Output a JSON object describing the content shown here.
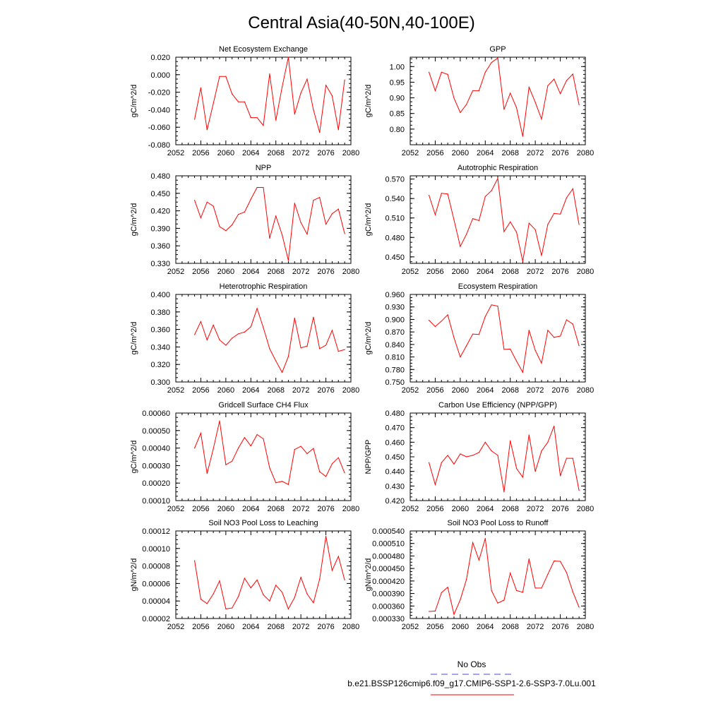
{
  "title": "Central Asia(40-50N,40-100E)",
  "colors": {
    "series": "#ff0000",
    "obs": "#4a4ad6",
    "axis": "#000000"
  },
  "legend": {
    "obs_label": "No Obs",
    "model_label": "b.e21.BSSP126cmip6.f09_g17.CMIP6-SSP1-2.6-SSP3-7.0Lu.001"
  },
  "chart_data": [
    {
      "type": "line",
      "title": "Net Ecosystem Exchange",
      "ylabel": "gC/m^2/d",
      "xlim": [
        2052,
        2080
      ],
      "xticks": [
        "2052",
        "2056",
        "2060",
        "2064",
        "2068",
        "2072",
        "2076",
        "2080"
      ],
      "ylim": [
        -0.08,
        0.02
      ],
      "yticks": [
        "-0.080",
        "-0.060",
        "-0.040",
        "-0.020",
        "0.000",
        "0.020"
      ],
      "x": [
        2055,
        2056,
        2057,
        2058,
        2059,
        2060,
        2061,
        2062,
        2063,
        2064,
        2065,
        2066,
        2067,
        2068,
        2069,
        2070,
        2071,
        2072,
        2073,
        2074,
        2075,
        2076,
        2077,
        2078,
        2079
      ],
      "values": [
        -0.051,
        -0.015,
        -0.063,
        -0.033,
        -0.002,
        -0.002,
        -0.022,
        -0.031,
        -0.031,
        -0.049,
        -0.049,
        -0.058,
        0.001,
        -0.052,
        -0.014,
        0.02,
        -0.045,
        -0.021,
        -0.005,
        -0.04,
        -0.066,
        -0.012,
        -0.024,
        -0.063,
        -0.006
      ]
    },
    {
      "type": "line",
      "title": "GPP",
      "ylabel": "gC/m^2/d",
      "xlim": [
        2052,
        2080
      ],
      "xticks": [
        "2052",
        "2056",
        "2060",
        "2064",
        "2068",
        "2072",
        "2076",
        "2080"
      ],
      "ylim": [
        0.75,
        1.03
      ],
      "yticks": [
        "0.80",
        "0.85",
        "0.90",
        "0.95",
        "1.00"
      ],
      "x": [
        2055,
        2056,
        2057,
        2058,
        2059,
        2060,
        2061,
        2062,
        2063,
        2064,
        2065,
        2066,
        2067,
        2068,
        2069,
        2070,
        2071,
        2072,
        2073,
        2074,
        2075,
        2076,
        2077,
        2078,
        2079
      ],
      "values": [
        0.982,
        0.923,
        0.982,
        0.975,
        0.899,
        0.853,
        0.879,
        0.923,
        0.923,
        0.982,
        1.013,
        1.027,
        0.863,
        0.915,
        0.868,
        0.777,
        0.934,
        0.886,
        0.832,
        0.939,
        0.96,
        0.913,
        0.955,
        0.976,
        0.878
      ]
    },
    {
      "type": "line",
      "title": "NPP",
      "ylabel": "gC/m^2/d",
      "xlim": [
        2052,
        2080
      ],
      "xticks": [
        "2052",
        "2056",
        "2060",
        "2064",
        "2068",
        "2072",
        "2076",
        "2080"
      ],
      "ylim": [
        0.33,
        0.48
      ],
      "yticks": [
        "0.330",
        "0.360",
        "0.390",
        "0.420",
        "0.450",
        "0.480"
      ],
      "x": [
        2055,
        2056,
        2057,
        2058,
        2059,
        2060,
        2061,
        2062,
        2063,
        2064,
        2065,
        2066,
        2067,
        2068,
        2069,
        2070,
        2071,
        2072,
        2073,
        2074,
        2075,
        2076,
        2077,
        2078,
        2079
      ],
      "values": [
        0.438,
        0.408,
        0.435,
        0.428,
        0.393,
        0.386,
        0.396,
        0.414,
        0.418,
        0.44,
        0.46,
        0.46,
        0.373,
        0.411,
        0.379,
        0.335,
        0.433,
        0.4,
        0.38,
        0.438,
        0.443,
        0.397,
        0.415,
        0.423,
        0.381
      ]
    },
    {
      "type": "line",
      "title": "Autotrophic Respiration",
      "ylabel": "gC/m^2/d",
      "xlim": [
        2052,
        2080
      ],
      "xticks": [
        "2052",
        "2056",
        "2060",
        "2064",
        "2068",
        "2072",
        "2076",
        "2080"
      ],
      "ylim": [
        0.44,
        0.575
      ],
      "yticks": [
        "0.450",
        "0.480",
        "0.510",
        "0.540",
        "0.570"
      ],
      "x": [
        2055,
        2056,
        2057,
        2058,
        2059,
        2060,
        2061,
        2062,
        2063,
        2064,
        2065,
        2066,
        2067,
        2068,
        2069,
        2070,
        2071,
        2072,
        2073,
        2074,
        2075,
        2076,
        2077,
        2078,
        2079
      ],
      "values": [
        0.545,
        0.515,
        0.548,
        0.547,
        0.507,
        0.466,
        0.485,
        0.509,
        0.506,
        0.543,
        0.552,
        0.571,
        0.489,
        0.504,
        0.488,
        0.443,
        0.502,
        0.492,
        0.452,
        0.5,
        0.517,
        0.516,
        0.541,
        0.555,
        0.5
      ]
    },
    {
      "type": "line",
      "title": "Heterotrophic Respiration",
      "ylabel": "gC/m^2/d",
      "xlim": [
        2052,
        2080
      ],
      "xticks": [
        "2052",
        "2056",
        "2060",
        "2064",
        "2068",
        "2072",
        "2076",
        "2080"
      ],
      "ylim": [
        0.3,
        0.4
      ],
      "yticks": [
        "0.300",
        "0.320",
        "0.340",
        "0.360",
        "0.380",
        "0.400"
      ],
      "x": [
        2055,
        2056,
        2057,
        2058,
        2059,
        2060,
        2061,
        2062,
        2063,
        2064,
        2065,
        2066,
        2067,
        2068,
        2069,
        2070,
        2071,
        2072,
        2073,
        2074,
        2075,
        2076,
        2077,
        2078,
        2079
      ],
      "values": [
        0.354,
        0.369,
        0.348,
        0.365,
        0.348,
        0.342,
        0.35,
        0.355,
        0.357,
        0.363,
        0.384,
        0.362,
        0.338,
        0.324,
        0.311,
        0.329,
        0.373,
        0.339,
        0.341,
        0.374,
        0.338,
        0.342,
        0.359,
        0.335,
        0.337
      ]
    },
    {
      "type": "line",
      "title": "Ecosystem Respiration",
      "ylabel": "gC/m^2/d",
      "xlim": [
        2052,
        2080
      ],
      "xticks": [
        "2052",
        "2056",
        "2060",
        "2064",
        "2068",
        "2072",
        "2076",
        "2080"
      ],
      "ylim": [
        0.75,
        0.96
      ],
      "yticks": [
        "0.750",
        "0.780",
        "0.810",
        "0.840",
        "0.870",
        "0.900",
        "0.930",
        "0.960"
      ],
      "x": [
        2055,
        2056,
        2057,
        2058,
        2059,
        2060,
        2061,
        2062,
        2063,
        2064,
        2065,
        2066,
        2067,
        2068,
        2069,
        2070,
        2071,
        2072,
        2073,
        2074,
        2075,
        2076,
        2077,
        2078,
        2079
      ],
      "values": [
        0.898,
        0.883,
        0.896,
        0.911,
        0.856,
        0.81,
        0.837,
        0.865,
        0.864,
        0.907,
        0.935,
        0.932,
        0.828,
        0.829,
        0.8,
        0.773,
        0.874,
        0.826,
        0.795,
        0.874,
        0.857,
        0.86,
        0.899,
        0.889,
        0.837
      ]
    },
    {
      "type": "line",
      "title": "Gridcell Surface CH4 Flux",
      "ylabel": "gC/m^2/d",
      "xlim": [
        2052,
        2080
      ],
      "xticks": [
        "2052",
        "2056",
        "2060",
        "2064",
        "2068",
        "2072",
        "2076",
        "2080"
      ],
      "ylim": [
        0.0001,
        0.0006
      ],
      "yticks": [
        "0.00010",
        "0.00020",
        "0.00030",
        "0.00040",
        "0.00050",
        "0.00060"
      ],
      "x": [
        2055,
        2056,
        2057,
        2058,
        2059,
        2060,
        2061,
        2062,
        2063,
        2064,
        2065,
        2066,
        2067,
        2068,
        2069,
        2070,
        2071,
        2072,
        2073,
        2074,
        2075,
        2076,
        2077,
        2078,
        2079
      ],
      "values": [
        0.0004,
        0.000485,
        0.000255,
        0.000395,
        0.000555,
        0.000305,
        0.000325,
        0.0004,
        0.00046,
        0.000412,
        0.000477,
        0.000453,
        0.000287,
        0.000202,
        0.00021,
        0.000192,
        0.000392,
        0.00041,
        0.000368,
        0.000398,
        0.000265,
        0.000238,
        0.00031,
        0.000345,
        0.000258
      ]
    },
    {
      "type": "line",
      "title": "Carbon Use Efficiency (NPP/GPP)",
      "ylabel": "NPP/GPP",
      "xlim": [
        2052,
        2080
      ],
      "xticks": [
        "2052",
        "2056",
        "2060",
        "2064",
        "2068",
        "2072",
        "2076",
        "2080"
      ],
      "ylim": [
        0.42,
        0.48
      ],
      "yticks": [
        "0.420",
        "0.430",
        "0.440",
        "0.450",
        "0.460",
        "0.470",
        "0.480"
      ],
      "x": [
        2055,
        2056,
        2057,
        2058,
        2059,
        2060,
        2061,
        2062,
        2063,
        2064,
        2065,
        2066,
        2067,
        2068,
        2069,
        2070,
        2071,
        2072,
        2073,
        2074,
        2075,
        2076,
        2077,
        2078,
        2079
      ],
      "values": [
        0.446,
        0.431,
        0.446,
        0.451,
        0.445,
        0.452,
        0.45,
        0.451,
        0.453,
        0.46,
        0.454,
        0.451,
        0.426,
        0.461,
        0.442,
        0.436,
        0.465,
        0.44,
        0.454,
        0.46,
        0.471,
        0.437,
        0.449,
        0.449,
        0.427
      ]
    },
    {
      "type": "line",
      "title": "Soil NO3 Pool Loss to Leaching",
      "ylabel": "gN/m^2/d",
      "xlim": [
        2052,
        2080
      ],
      "xticks": [
        "2052",
        "2056",
        "2060",
        "2064",
        "2068",
        "2072",
        "2076",
        "2080"
      ],
      "ylim": [
        2e-05,
        0.00012
      ],
      "yticks": [
        "0.00002",
        "0.00004",
        "0.00006",
        "0.00008",
        "0.00010",
        "0.00012"
      ],
      "x": [
        2055,
        2056,
        2057,
        2058,
        2059,
        2060,
        2061,
        2062,
        2063,
        2064,
        2065,
        2066,
        2067,
        2068,
        2069,
        2070,
        2071,
        2072,
        2073,
        2074,
        2075,
        2076,
        2077,
        2078,
        2079
      ],
      "values": [
        8.6e-05,
        4.2e-05,
        3.7e-05,
        4.8e-05,
        6.3e-05,
        3.1e-05,
        3.2e-05,
        4.5e-05,
        6.6e-05,
        5.5e-05,
        6.4e-05,
        4.7e-05,
        4e-05,
        5.8e-05,
        5e-05,
        3.1e-05,
        4.4e-05,
        6.7e-05,
        4.8e-05,
        3.8e-05,
        6.5e-05,
        0.000114,
        7.5e-05,
        9.1e-05,
        6.4e-05
      ]
    },
    {
      "type": "line",
      "title": "Soil NO3 Pool Loss to Runoff",
      "ylabel": "gN/m^2/d",
      "xlim": [
        2052,
        2080
      ],
      "xticks": [
        "2052",
        "2056",
        "2060",
        "2064",
        "2068",
        "2072",
        "2076",
        "2080"
      ],
      "ylim": [
        0.00033,
        0.00054
      ],
      "yticks": [
        "0.000330",
        "0.000360",
        "0.000390",
        "0.000420",
        "0.000450",
        "0.000480",
        "0.000510",
        "0.000540"
      ],
      "x": [
        2055,
        2056,
        2057,
        2058,
        2059,
        2060,
        2061,
        2062,
        2063,
        2064,
        2065,
        2066,
        2067,
        2068,
        2069,
        2070,
        2071,
        2072,
        2073,
        2074,
        2075,
        2076,
        2077,
        2078,
        2079
      ],
      "values": [
        0.000347,
        0.000348,
        0.000392,
        0.000405,
        0.00034,
        0.000375,
        0.000424,
        0.000512,
        0.00047,
        0.000522,
        0.000397,
        0.000367,
        0.000374,
        0.000439,
        0.000397,
        0.000393,
        0.000473,
        0.000403,
        0.000403,
        0.000436,
        0.000468,
        0.000467,
        0.00044,
        0.000394,
        0.000357
      ]
    }
  ]
}
